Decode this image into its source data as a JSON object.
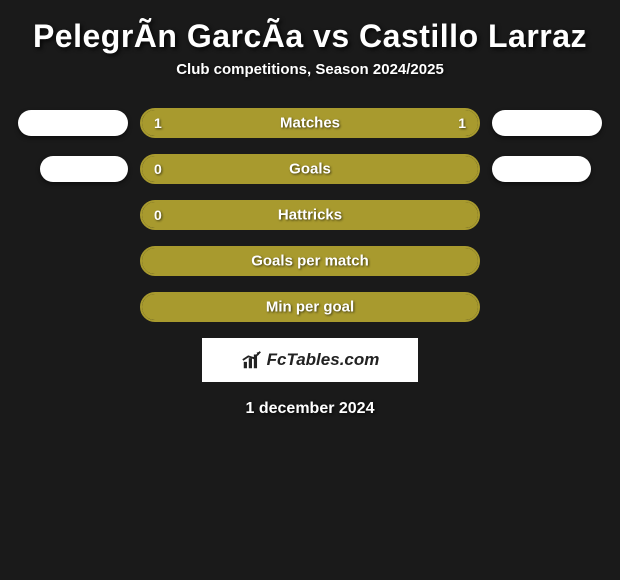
{
  "title": "PelegrÃ­n GarcÃ­a vs Castillo Larraz",
  "subtitle": "Club competitions, Season 2024/2025",
  "date": "1 december 2024",
  "logo_text": "FcTables.com",
  "colors": {
    "background": "#1a1a1a",
    "bar_fill": "#a89a2e",
    "bar_border": "#a89a2e",
    "pill": "#ffffff",
    "text": "#ffffff",
    "logo_bg": "#ffffff",
    "logo_text": "#222222"
  },
  "stats": [
    {
      "label": "Matches",
      "left_val": "1",
      "right_val": "1",
      "left_fill_pct": 50,
      "right_fill_pct": 50,
      "left_pill_pct": 100,
      "right_pill_pct": 100
    },
    {
      "label": "Goals",
      "left_val": "0",
      "right_val": "",
      "left_fill_pct": 100,
      "right_fill_pct": 0,
      "left_pill_pct": 80,
      "right_pill_pct": 90
    },
    {
      "label": "Hattricks",
      "left_val": "0",
      "right_val": "",
      "left_fill_pct": 100,
      "right_fill_pct": 0,
      "left_pill_pct": 0,
      "right_pill_pct": 0
    },
    {
      "label": "Goals per match",
      "left_val": "",
      "right_val": "",
      "left_fill_pct": 100,
      "right_fill_pct": 0,
      "left_pill_pct": 0,
      "right_pill_pct": 0
    },
    {
      "label": "Min per goal",
      "left_val": "",
      "right_val": "",
      "left_fill_pct": 100,
      "right_fill_pct": 0,
      "left_pill_pct": 0,
      "right_pill_pct": 0
    }
  ]
}
